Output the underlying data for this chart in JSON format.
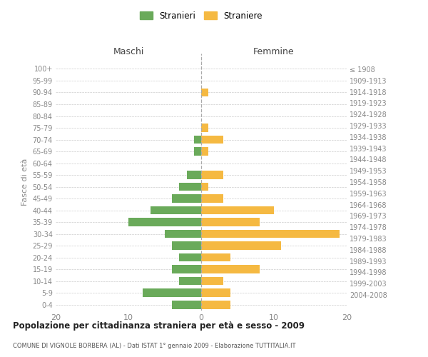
{
  "age_groups": [
    "0-4",
    "5-9",
    "10-14",
    "15-19",
    "20-24",
    "25-29",
    "30-34",
    "35-39",
    "40-44",
    "45-49",
    "50-54",
    "55-59",
    "60-64",
    "65-69",
    "70-74",
    "75-79",
    "80-84",
    "85-89",
    "90-94",
    "95-99",
    "100+"
  ],
  "birth_years": [
    "2004-2008",
    "1999-2003",
    "1994-1998",
    "1989-1993",
    "1984-1988",
    "1979-1983",
    "1974-1978",
    "1969-1973",
    "1964-1968",
    "1959-1963",
    "1954-1958",
    "1949-1953",
    "1944-1948",
    "1939-1943",
    "1934-1938",
    "1929-1933",
    "1924-1928",
    "1919-1923",
    "1914-1918",
    "1909-1913",
    "≤ 1908"
  ],
  "maschi": [
    4,
    8,
    3,
    4,
    3,
    4,
    5,
    10,
    7,
    4,
    3,
    2,
    0,
    1,
    1,
    0,
    0,
    0,
    0,
    0,
    0
  ],
  "femmine": [
    4,
    4,
    3,
    8,
    4,
    11,
    19,
    8,
    10,
    3,
    1,
    3,
    0,
    1,
    3,
    1,
    0,
    0,
    1,
    0,
    0
  ],
  "color_maschi": "#6aaa5a",
  "color_femmine": "#f5b942",
  "title": "Popolazione per cittadinanza straniera per età e sesso - 2009",
  "subtitle": "COMUNE DI VIGNOLE BORBERA (AL) - Dati ISTAT 1° gennaio 2009 - Elaborazione TUTTITALIA.IT",
  "ylabel_left": "Fasce di età",
  "xlabel_left": "Maschi",
  "xlabel_right": "Femmine",
  "legend_stranieri": "Stranieri",
  "legend_straniere": "Straniere",
  "xlim": 20,
  "bg_color": "#ffffff",
  "grid_color": "#cccccc"
}
